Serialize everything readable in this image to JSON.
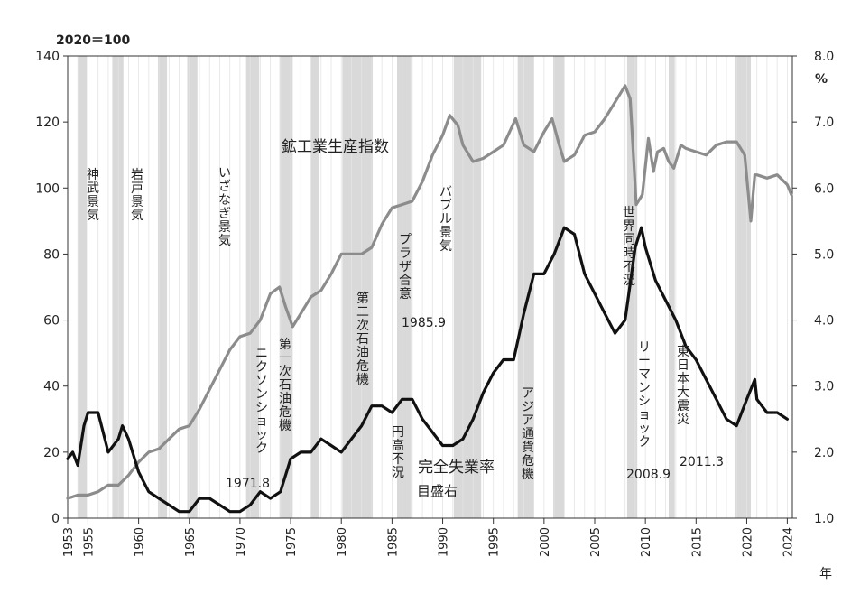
{
  "chart_data": {
    "type": "line",
    "left_axis_unit": "2020＝100",
    "right_axis_unit": "%",
    "year_suffix": "年",
    "x_range": [
      1953,
      2024.5
    ],
    "xticks": [
      1953,
      1955,
      1960,
      1965,
      1970,
      1975,
      1980,
      1985,
      1990,
      1995,
      2000,
      2005,
      2010,
      2015,
      2020,
      2024
    ],
    "ylim_left": [
      0,
      140
    ],
    "yticks_left": [
      0,
      20,
      40,
      60,
      80,
      100,
      120,
      140
    ],
    "ylim_right": [
      1.0,
      8.0
    ],
    "yticks_right": [
      "1.0",
      "2.0",
      "3.0",
      "4.0",
      "5.0",
      "6.0",
      "7.0",
      "8.0"
    ],
    "recession_bands": [
      [
        1954.0,
        1954.9
      ],
      [
        1957.4,
        1958.5
      ],
      [
        1961.9,
        1962.8
      ],
      [
        1964.8,
        1965.8
      ],
      [
        1970.6,
        1971.9
      ],
      [
        1973.9,
        1975.2
      ],
      [
        1977.0,
        1977.8
      ],
      [
        1980.1,
        1983.1
      ],
      [
        1985.5,
        1986.9
      ],
      [
        1991.1,
        1993.8
      ],
      [
        1997.4,
        1999.0
      ],
      [
        2000.9,
        2002.0
      ],
      [
        2008.2,
        2009.2
      ],
      [
        2012.3,
        2012.9
      ],
      [
        2018.8,
        2020.4
      ]
    ],
    "series": [
      {
        "name": "鉱工業生産指数",
        "axis": "left",
        "color": "#8c8c8c",
        "x": [
          1953,
          1954,
          1955,
          1956,
          1957,
          1958,
          1959,
          1960,
          1961,
          1962,
          1963,
          1964,
          1965,
          1966,
          1967,
          1968,
          1969,
          1970,
          1971,
          1972,
          1973,
          1973.9,
          1974.5,
          1975.2,
          1976,
          1977,
          1978,
          1979,
          1980,
          1981,
          1982,
          1983,
          1984,
          1985,
          1986,
          1987,
          1988,
          1989,
          1990,
          1990.7,
          1991.5,
          1992,
          1993,
          1994,
          1995,
          1996,
          1997.2,
          1998,
          1999,
          2000,
          2000.8,
          2001.5,
          2002,
          2003,
          2004,
          2005,
          2006,
          2007,
          2008,
          2008.5,
          2009.1,
          2009.7,
          2010.3,
          2010.8,
          2011.2,
          2011.8,
          2012.3,
          2012.8,
          2013.5,
          2014,
          2015,
          2016,
          2017,
          2018,
          2019,
          2019.8,
          2020.4,
          2020.8,
          2021,
          2022,
          2023,
          2024,
          2024.4
        ],
        "values": [
          6,
          7,
          7,
          8,
          10,
          10,
          13,
          17,
          20,
          21,
          24,
          27,
          28,
          33,
          39,
          45,
          51,
          55,
          56,
          60,
          68,
          70,
          64,
          58,
          62,
          67,
          69,
          74,
          80,
          80,
          80,
          82,
          89,
          94,
          95,
          96,
          102,
          110,
          116,
          122,
          119,
          113,
          108,
          109,
          111,
          113,
          121,
          113,
          111,
          117,
          121,
          113,
          108,
          110,
          116,
          117,
          121,
          126,
          131,
          127,
          95,
          98,
          115,
          105,
          111,
          112,
          108,
          106,
          113,
          112,
          111,
          110,
          113,
          114,
          114,
          110,
          90,
          104,
          104,
          103,
          104,
          101,
          98
        ]
      },
      {
        "name": "完全失業率",
        "axis": "right",
        "note": "目盛右",
        "color": "#111111",
        "x": [
          1953,
          1953.5,
          1954,
          1954.6,
          1955,
          1955.5,
          1956,
          1957,
          1958,
          1958.4,
          1959,
          1960,
          1961,
          1962,
          1963,
          1964,
          1965,
          1966,
          1967,
          1968,
          1969,
          1970,
          1971,
          1972,
          1973,
          1974,
          1975,
          1976,
          1977,
          1978,
          1979,
          1980,
          1981,
          1982,
          1983,
          1984,
          1985,
          1986,
          1987,
          1988,
          1989,
          1990,
          1991,
          1992,
          1993,
          1994,
          1995,
          1996,
          1997,
          1998,
          1999,
          2000,
          2001,
          2002,
          2003,
          2004,
          2005,
          2006,
          2007,
          2008,
          2009,
          2009.6,
          2010,
          2011,
          2012,
          2013,
          2014,
          2015,
          2016,
          2017,
          2018,
          2019,
          2020,
          2020.8,
          2021,
          2022,
          2023,
          2024
        ],
        "values": [
          1.9,
          2.0,
          1.8,
          2.4,
          2.6,
          2.6,
          2.6,
          2.0,
          2.2,
          2.4,
          2.2,
          1.7,
          1.4,
          1.3,
          1.2,
          1.1,
          1.1,
          1.3,
          1.3,
          1.2,
          1.1,
          1.1,
          1.2,
          1.4,
          1.3,
          1.4,
          1.9,
          2.0,
          2.0,
          2.2,
          2.1,
          2.0,
          2.2,
          2.4,
          2.7,
          2.7,
          2.6,
          2.8,
          2.8,
          2.5,
          2.3,
          2.1,
          2.1,
          2.2,
          2.5,
          2.9,
          3.2,
          3.4,
          3.4,
          4.1,
          4.7,
          4.7,
          5.0,
          5.4,
          5.3,
          4.7,
          4.4,
          4.1,
          3.8,
          4.0,
          5.1,
          5.4,
          5.1,
          4.6,
          4.3,
          4.0,
          3.6,
          3.4,
          3.1,
          2.8,
          2.5,
          2.4,
          2.8,
          3.1,
          2.8,
          2.6,
          2.6,
          2.5
        ]
      }
    ],
    "annotations": {
      "jimmu": "神武景気",
      "iwato": "岩戸景気",
      "izanagi": "いざなぎ景気",
      "nixon": "ニクソンショック",
      "nixon_date": "1971.8",
      "oil1": "第一次石油危機",
      "oil2": "第二次石油危機",
      "plaza": "プラザ合意",
      "plaza_date": "1985.9",
      "endaka": "円高不況",
      "bubble": "バブル景気",
      "asia": "アジア通貨危機",
      "sekai": "世界同時不況",
      "lehman": "リーマンショック",
      "lehman_date": "2008.9",
      "tohoku": "東日本大震災",
      "tohoku_date": "2011.3",
      "iip_label": "鉱工業生産指数",
      "unemp_label": "完全失業率",
      "unemp_axis_note": "目盛右"
    }
  }
}
